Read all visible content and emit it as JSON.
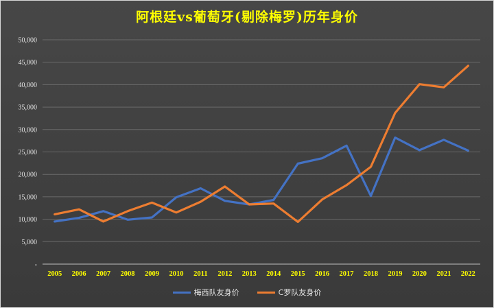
{
  "chart_data": {
    "type": "line",
    "title": "阿根廷vs葡萄牙(剔除梅罗)历年身价",
    "xlabel": "",
    "ylabel": "",
    "categories": [
      "2005",
      "2006",
      "2007",
      "2008",
      "2009",
      "2010",
      "2011",
      "2012",
      "2013",
      "2014",
      "2015",
      "2016",
      "2017",
      "2018",
      "2019",
      "2020",
      "2021",
      "2022"
    ],
    "ylim": [
      0,
      50000
    ],
    "yticks": [
      "-",
      "5,000",
      "10,000",
      "15,000",
      "20,000",
      "25,000",
      "30,000",
      "35,000",
      "40,000",
      "45,000",
      "50,000"
    ],
    "series": [
      {
        "name": "梅西队友身价",
        "color": "#4472c4",
        "values": [
          9500,
          10300,
          11800,
          9900,
          10400,
          14900,
          16900,
          14100,
          13300,
          14300,
          22400,
          23600,
          26400,
          15200,
          28200,
          25400,
          27700,
          25300
        ]
      },
      {
        "name": "C罗队友身价",
        "color": "#ed7d31",
        "values": [
          11100,
          12200,
          9500,
          11800,
          13700,
          11500,
          13900,
          17300,
          13300,
          13500,
          9400,
          14400,
          17600,
          21700,
          33700,
          40100,
          39400,
          44200
        ]
      }
    ],
    "grid": true,
    "legend_position": "bottom"
  }
}
